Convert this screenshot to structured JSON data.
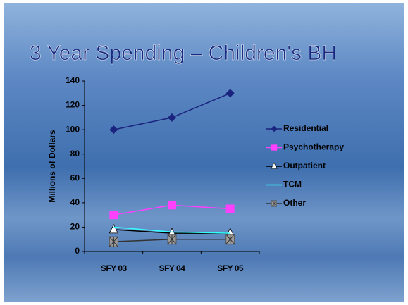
{
  "chart_data": {
    "type": "line",
    "title": "3 Year Spending – Children's BH",
    "y_label": "Millions of Dollars",
    "categories": [
      "SFY 03",
      "SFY 04",
      "SFY 05"
    ],
    "series": [
      {
        "name": "Residential",
        "color": "#1a237e",
        "marker": "diamond",
        "values": [
          100,
          110,
          130
        ]
      },
      {
        "name": "Psychotherapy",
        "color": "#ff40ff",
        "marker": "square",
        "values": [
          30,
          38,
          35
        ]
      },
      {
        "name": "Outpatient",
        "color": "#000000",
        "marker": "triangle",
        "values": [
          18,
          15,
          15
        ]
      },
      {
        "name": "TCM",
        "color": "#33ffff",
        "marker": "none",
        "values": [
          20,
          16,
          15
        ]
      },
      {
        "name": "Other",
        "color": "#333333",
        "marker": "xsquare",
        "values": [
          8,
          10,
          10
        ]
      }
    ],
    "ylim": [
      0,
      140
    ],
    "yticks": [
      0,
      20,
      40,
      60,
      80,
      100,
      120,
      140
    ],
    "legend": "right"
  }
}
